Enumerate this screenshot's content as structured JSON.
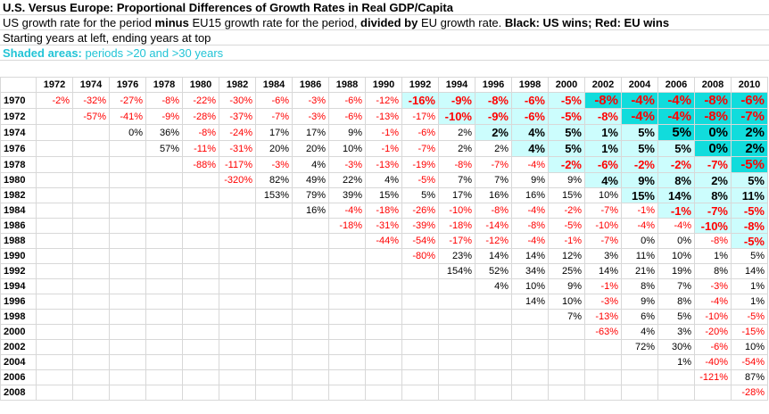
{
  "title": "U.S. Versus Europe: Proportional Differences of Growth Rates in Real GDP/Capita",
  "line2": {
    "a": "US growth rate for the period ",
    "b": "minus",
    "c": " EU15 growth rate for the period, ",
    "d": "divided by",
    "e": " EU growth rate. ",
    "f": "Black: US wins; Red: EU wins"
  },
  "line3": "Starting years at left, ending years at top",
  "line4": {
    "label": "Shaded areas:",
    "text": " periods >20 and >30 years"
  },
  "colors": {
    "eu_wins": "#ff0000",
    "us_wins": "#000000",
    "shade_20": "#ccfdfd",
    "shade_30": "#11dcdc",
    "shaded_label": "#22c4d6"
  },
  "end_years": [
    "1972",
    "1974",
    "1976",
    "1978",
    "1980",
    "1982",
    "1984",
    "1986",
    "1988",
    "1990",
    "1992",
    "1994",
    "1996",
    "1998",
    "2000",
    "2002",
    "2004",
    "2006",
    "2008",
    "2010"
  ],
  "rows": [
    {
      "start": "1970",
      "cells": [
        "-2%",
        "-32%",
        "-27%",
        "-8%",
        "-22%",
        "-30%",
        "-6%",
        "-3%",
        "-6%",
        "-12%",
        "-16%",
        "-9%",
        "-8%",
        "-6%",
        "-5%",
        "-8%",
        "-4%",
        "-4%",
        "-8%",
        "-6%"
      ]
    },
    {
      "start": "1972",
      "cells": [
        "",
        "-57%",
        "-41%",
        "-9%",
        "-28%",
        "-37%",
        "-7%",
        "-3%",
        "-6%",
        "-13%",
        "-17%",
        "-10%",
        "-9%",
        "-6%",
        "-5%",
        "-8%",
        "-4%",
        "-4%",
        "-8%",
        "-7%"
      ]
    },
    {
      "start": "1974",
      "cells": [
        "",
        "",
        "0%",
        "36%",
        "-8%",
        "-24%",
        "17%",
        "17%",
        "9%",
        "-1%",
        "-6%",
        "2%",
        "2%",
        "4%",
        "5%",
        "1%",
        "5%",
        "5%",
        "0%",
        "2%"
      ]
    },
    {
      "start": "1976",
      "cells": [
        "",
        "",
        "",
        "57%",
        "-11%",
        "-31%",
        "20%",
        "20%",
        "10%",
        "-1%",
        "-7%",
        "2%",
        "2%",
        "4%",
        "5%",
        "1%",
        "5%",
        "5%",
        "0%",
        "2%"
      ]
    },
    {
      "start": "1978",
      "cells": [
        "",
        "",
        "",
        "",
        "-88%",
        "-117%",
        "-3%",
        "4%",
        "-3%",
        "-13%",
        "-19%",
        "-8%",
        "-7%",
        "-4%",
        "-2%",
        "-6%",
        "-2%",
        "-2%",
        "-7%",
        "-5%"
      ]
    },
    {
      "start": "1980",
      "cells": [
        "",
        "",
        "",
        "",
        "",
        "-320%",
        "82%",
        "49%",
        "22%",
        "4%",
        "-5%",
        "7%",
        "7%",
        "9%",
        "9%",
        "4%",
        "9%",
        "8%",
        "2%",
        "5%"
      ]
    },
    {
      "start": "1982",
      "cells": [
        "",
        "",
        "",
        "",
        "",
        "",
        "153%",
        "79%",
        "39%",
        "15%",
        "5%",
        "17%",
        "16%",
        "16%",
        "15%",
        "10%",
        "15%",
        "14%",
        "8%",
        "11%"
      ]
    },
    {
      "start": "1984",
      "cells": [
        "",
        "",
        "",
        "",
        "",
        "",
        "",
        "16%",
        "-4%",
        "-18%",
        "-26%",
        "-10%",
        "-8%",
        "-4%",
        "-2%",
        "-7%",
        "-1%",
        "-1%",
        "-7%",
        "-5%"
      ]
    },
    {
      "start": "1986",
      "cells": [
        "",
        "",
        "",
        "",
        "",
        "",
        "",
        "",
        "-18%",
        "-31%",
        "-39%",
        "-18%",
        "-14%",
        "-8%",
        "-5%",
        "-10%",
        "-4%",
        "-4%",
        "-10%",
        "-8%"
      ]
    },
    {
      "start": "1988",
      "cells": [
        "",
        "",
        "",
        "",
        "",
        "",
        "",
        "",
        "",
        "-44%",
        "-54%",
        "-17%",
        "-12%",
        "-4%",
        "-1%",
        "-7%",
        "0%",
        "0%",
        "-8%",
        "-5%"
      ]
    },
    {
      "start": "1990",
      "cells": [
        "",
        "",
        "",
        "",
        "",
        "",
        "",
        "",
        "",
        "",
        "-80%",
        "23%",
        "14%",
        "14%",
        "12%",
        "3%",
        "11%",
        "10%",
        "1%",
        "5%"
      ]
    },
    {
      "start": "1992",
      "cells": [
        "",
        "",
        "",
        "",
        "",
        "",
        "",
        "",
        "",
        "",
        "",
        "154%",
        "52%",
        "34%",
        "25%",
        "14%",
        "21%",
        "19%",
        "8%",
        "14%"
      ]
    },
    {
      "start": "1994",
      "cells": [
        "",
        "",
        "",
        "",
        "",
        "",
        "",
        "",
        "",
        "",
        "",
        "",
        "4%",
        "10%",
        "9%",
        "-1%",
        "8%",
        "7%",
        "-3%",
        "1%"
      ]
    },
    {
      "start": "1996",
      "cells": [
        "",
        "",
        "",
        "",
        "",
        "",
        "",
        "",
        "",
        "",
        "",
        "",
        "",
        "14%",
        "10%",
        "-3%",
        "9%",
        "8%",
        "-4%",
        "1%"
      ]
    },
    {
      "start": "1998",
      "cells": [
        "",
        "",
        "",
        "",
        "",
        "",
        "",
        "",
        "",
        "",
        "",
        "",
        "",
        "",
        "7%",
        "-13%",
        "6%",
        "5%",
        "-10%",
        "-5%"
      ]
    },
    {
      "start": "2000",
      "cells": [
        "",
        "",
        "",
        "",
        "",
        "",
        "",
        "",
        "",
        "",
        "",
        "",
        "",
        "",
        "",
        "-63%",
        "4%",
        "3%",
        "-20%",
        "-15%"
      ]
    },
    {
      "start": "2002",
      "cells": [
        "",
        "",
        "",
        "",
        "",
        "",
        "",
        "",
        "",
        "",
        "",
        "",
        "",
        "",
        "",
        "",
        "72%",
        "30%",
        "-6%",
        "10%"
      ]
    },
    {
      "start": "2004",
      "cells": [
        "",
        "",
        "",
        "",
        "",
        "",
        "",
        "",
        "",
        "",
        "",
        "",
        "",
        "",
        "",
        "",
        "",
        "1%",
        "-40%",
        "-54%"
      ]
    },
    {
      "start": "2006",
      "cells": [
        "",
        "",
        "",
        "",
        "",
        "",
        "",
        "",
        "",
        "",
        "",
        "",
        "",
        "",
        "",
        "",
        "",
        "",
        "-121%",
        "87%"
      ]
    },
    {
      "start": "2008",
      "cells": [
        "",
        "",
        "",
        "",
        "",
        "",
        "",
        "",
        "",
        "",
        "",
        "",
        "",
        "",
        "",
        "",
        "",
        "",
        "",
        "-28%"
      ]
    }
  ]
}
